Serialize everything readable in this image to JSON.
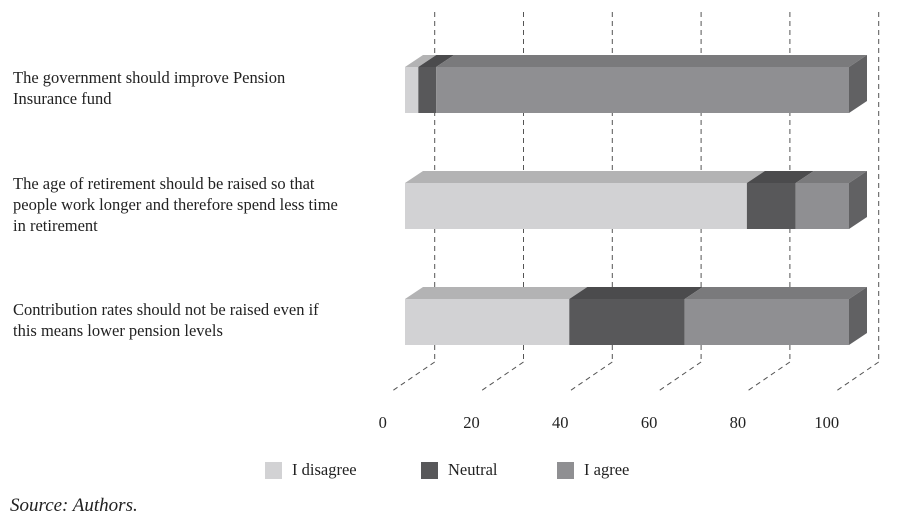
{
  "chart_data": {
    "type": "bar",
    "orientation": "horizontal",
    "stacked": true,
    "style": "3d",
    "categories": [
      "The government should improve Pension Insurance fund",
      "The age of retirement should be raised so that people work longer and therefore spend less time in retirement",
      "Contribution rates should not be raised even if this means lower pension levels"
    ],
    "series": [
      {
        "name": "I disagree",
        "color": "#d2d2d4",
        "values": [
          3,
          77,
          37
        ]
      },
      {
        "name": "Neutral",
        "color": "#58585a",
        "values": [
          4,
          11,
          26
        ]
      },
      {
        "name": "I agree",
        "color": "#8f8f92",
        "values": [
          93,
          12,
          37
        ]
      }
    ],
    "x_ticks": [
      "0",
      "20",
      "40",
      "60",
      "80",
      "100"
    ],
    "xlim": [
      0,
      100
    ],
    "grid": "dashed vertical",
    "legend_position": "bottom"
  },
  "category_lines": [
    [
      "The government should improve Pension",
      "Insurance fund"
    ],
    [
      "The age of retirement should be raised so that",
      "people work longer and therefore spend less time",
      "in retirement"
    ],
    [
      "Contribution rates should not be raised even if",
      "this means lower pension levels"
    ]
  ],
  "source": "Source: Authors."
}
